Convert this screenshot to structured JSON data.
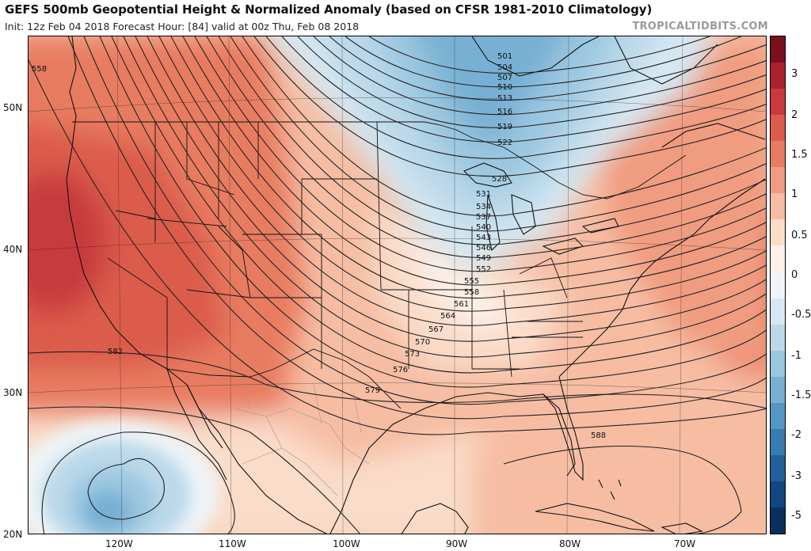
{
  "header": {
    "title": "GEFS 500mb Geopotential Height & Normalized Anomaly (based on CFSR 1981-2010 Climatology)",
    "subtitle": "Init: 12z Feb 04 2018   Forecast Hour: [84]   valid at 00z Thu, Feb 08 2018",
    "brand": "TROPICALTIDBITS.COM"
  },
  "map": {
    "lat_labels": [
      "50N",
      "40N",
      "30N",
      "20N"
    ],
    "lon_labels": [
      "120W",
      "110W",
      "100W",
      "90W",
      "80W",
      "70W"
    ],
    "contour_labels": [
      "558",
      "501",
      "504",
      "507",
      "510",
      "513",
      "516",
      "519",
      "522",
      "528",
      "531",
      "534",
      "537",
      "540",
      "543",
      "546",
      "549",
      "552",
      "555",
      "558",
      "561",
      "564",
      "567",
      "570",
      "573",
      "576",
      "579",
      "582",
      "588"
    ]
  },
  "colorbar": {
    "labels": [
      "3",
      "2",
      "1.5",
      "1",
      "0.5",
      "0",
      "-0.5",
      "-1",
      "-1.5",
      "-2",
      "-3",
      "-5"
    ],
    "segments": [
      {
        "color": "#7a0f1d"
      },
      {
        "color": "#a8222e"
      },
      {
        "color": "#c83a3c"
      },
      {
        "color": "#db5b4c"
      },
      {
        "color": "#e87b61"
      },
      {
        "color": "#f09c80"
      },
      {
        "color": "#f6bda3"
      },
      {
        "color": "#fadcc9"
      },
      {
        "color": "#fdf0e8"
      },
      {
        "color": "#eef4f8"
      },
      {
        "color": "#d6e8f2"
      },
      {
        "color": "#bbd9ea"
      },
      {
        "color": "#9bc7e0"
      },
      {
        "color": "#78b0d3"
      },
      {
        "color": "#5497c3"
      },
      {
        "color": "#377cb0"
      },
      {
        "color": "#21609a"
      },
      {
        "color": "#104780"
      },
      {
        "color": "#0a2f5c"
      }
    ]
  }
}
